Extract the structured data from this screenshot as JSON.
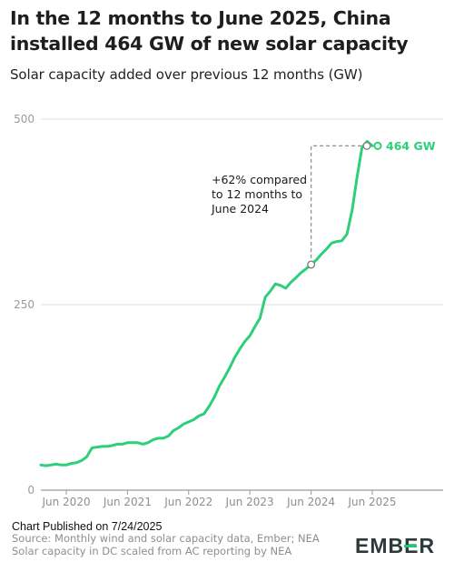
{
  "header": {
    "title": "In the 12 months to June 2025, China installed 464 GW of new solar capacity",
    "subtitle": "Solar capacity added over previous 12 months (GW)"
  },
  "footer": {
    "published": "Chart Published on 7/24/2025",
    "source_line1": "Source: Monthly wind and solar capacity data, Ember; NEA",
    "source_line2": "Solar capacity in DC scaled from AC reporting by NEA",
    "logo_text": "EMBER",
    "logo_accent_color": "#13ce74"
  },
  "chart_data": {
    "type": "line",
    "title": "In the 12 months to June 2025, China installed 464 GW of new solar capacity",
    "subtitle": "Solar capacity added over previous 12 months (GW)",
    "xlabel": "",
    "ylabel": "",
    "ylim": [
      0,
      500
    ],
    "yticks": [
      0,
      250,
      500
    ],
    "xticks": [
      "Jun 2020",
      "Jun 2021",
      "Jun 2022",
      "Jun 2023",
      "Jun 2024",
      "Jun 2025"
    ],
    "grid": true,
    "line_color": "#2ecf7a",
    "series": [
      {
        "x": [
          "2020-01",
          "2020-02",
          "2020-03",
          "2020-04",
          "2020-05",
          "2020-06",
          "2020-07",
          "2020-08",
          "2020-09",
          "2020-10",
          "2020-11",
          "2020-12",
          "2021-01",
          "2021-02",
          "2021-03",
          "2021-04",
          "2021-05",
          "2021-06",
          "2021-07",
          "2021-08",
          "2021-09",
          "2021-10",
          "2021-11",
          "2021-12",
          "2022-01",
          "2022-02",
          "2022-03",
          "2022-04",
          "2022-05",
          "2022-06",
          "2022-07",
          "2022-08",
          "2022-09",
          "2022-10",
          "2022-11",
          "2022-12",
          "2023-01",
          "2023-02",
          "2023-03",
          "2023-04",
          "2023-05",
          "2023-06",
          "2023-07",
          "2023-08",
          "2023-09",
          "2023-10",
          "2023-11",
          "2023-12",
          "2024-01",
          "2024-02",
          "2024-03",
          "2024-04",
          "2024-05",
          "2024-06",
          "2024-07",
          "2024-08",
          "2024-09",
          "2024-10",
          "2024-11",
          "2024-12",
          "2025-01",
          "2025-02",
          "2025-03",
          "2025-04",
          "2025-05",
          "2025-06"
        ],
        "values": [
          34,
          33,
          34,
          35,
          34,
          34,
          36,
          37,
          40,
          45,
          57,
          58,
          59,
          59,
          60,
          62,
          62,
          64,
          64,
          64,
          62,
          64,
          68,
          70,
          70,
          73,
          80,
          84,
          89,
          92,
          95,
          100,
          103,
          113,
          125,
          140,
          152,
          165,
          178,
          190,
          200,
          208,
          220,
          232,
          260,
          268,
          278,
          276,
          272,
          280,
          286,
          293,
          298,
          304,
          310,
          318,
          325,
          333,
          335,
          336,
          345,
          378,
          420,
          462,
          470,
          464
        ]
      }
    ],
    "annotations": [
      {
        "text_line1": "+62% compared",
        "text_line2": "to 12 months to",
        "text_line3": "June 2024"
      },
      {
        "text": "464 GW"
      }
    ]
  }
}
